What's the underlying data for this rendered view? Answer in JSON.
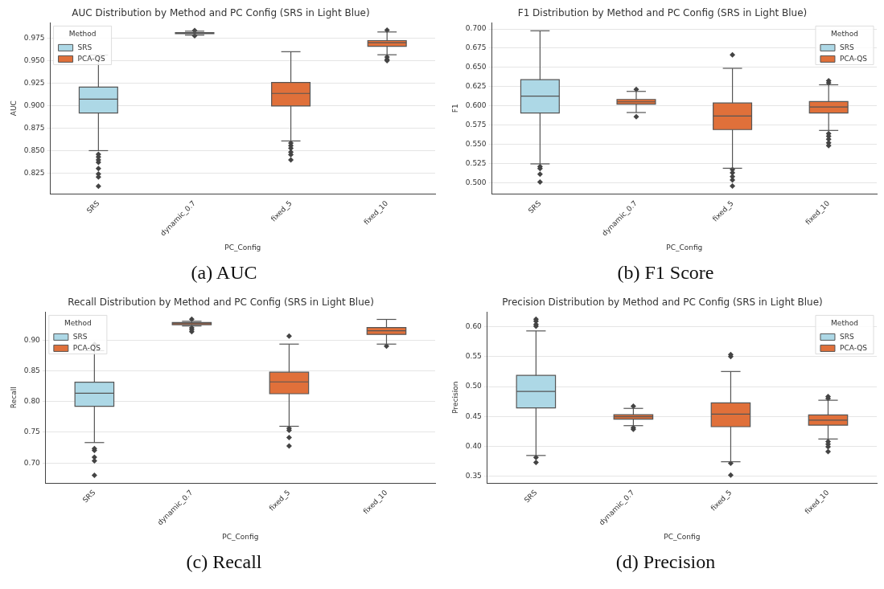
{
  "chart_data": [
    {
      "type": "box",
      "title": "AUC Distribution by Method and PC Config (SRS in Light Blue)",
      "xlabel": "PC_Config",
      "ylabel": "AUC",
      "legend_title": "Method",
      "legend": "top left",
      "grid": "y",
      "marker": "diamond",
      "annotations": [
        "(a) AUC"
      ],
      "categories": [
        "SRS",
        "dynamic_0.7",
        "fixed_5",
        "fixed_10"
      ],
      "ylim": [
        0.802,
        0.9925
      ],
      "yticks": [
        {
          "value": 0.825,
          "label": "0.825"
        },
        {
          "value": 0.85,
          "label": "0.850"
        },
        {
          "value": 0.875,
          "label": "0.875"
        },
        {
          "value": 0.9,
          "label": "0.900"
        },
        {
          "value": 0.925,
          "label": "0.925"
        },
        {
          "value": 0.95,
          "label": "0.950"
        },
        {
          "value": 0.975,
          "label": "0.975"
        }
      ],
      "series": [
        {
          "name": "SRS",
          "color": "#add8e6",
          "boxes": [
            {
              "low": 0.85,
              "q1": 0.892,
              "median": 0.9074,
              "q3": 0.9208,
              "high": 0.9566,
              "outliers": [
                0.846,
                0.843,
                0.8396,
                0.837,
                0.83,
                0.824,
                0.8206,
                0.8104
              ]
            },
            null,
            null,
            null
          ]
        },
        {
          "name": "PCA-QS",
          "color": "#e0703a",
          "boxes": [
            null,
            {
              "low": 0.9788,
              "q1": 0.9805,
              "median": 0.981,
              "q3": 0.9815,
              "high": 0.9832,
              "outliers": [
                0.984,
                0.978
              ]
            },
            {
              "low": 0.8608,
              "q1": 0.8998,
              "median": 0.9138,
              "q3": 0.926,
              "high": 0.9603,
              "outliers": [
                0.8585,
                0.8556,
                0.8527,
                0.8483,
                0.8454,
                0.8396
              ]
            },
            {
              "low": 0.9569,
              "q1": 0.9663,
              "median": 0.9703,
              "q3": 0.9727,
              "high": 0.9823,
              "outliers": [
                0.9843,
                0.9543,
                0.9517,
                0.9502
              ]
            }
          ]
        }
      ]
    },
    {
      "type": "box",
      "title": "F1 Distribution by Method and PC Config (SRS in Light Blue)",
      "xlabel": "PC_Config",
      "ylabel": "F1",
      "legend_title": "Method",
      "legend": "top right",
      "grid": "y",
      "marker": "diamond",
      "annotations": [
        "(b) F1 Score"
      ],
      "categories": [
        "SRS",
        "dynamic_0.7",
        "fixed_5",
        "fixed_10"
      ],
      "ylim": [
        0.4857,
        0.708
      ],
      "yticks": [
        {
          "value": 0.5,
          "label": "0.500"
        },
        {
          "value": 0.525,
          "label": "0.525"
        },
        {
          "value": 0.55,
          "label": "0.550"
        },
        {
          "value": 0.575,
          "label": "0.575"
        },
        {
          "value": 0.6,
          "label": "0.600"
        },
        {
          "value": 0.625,
          "label": "0.625"
        },
        {
          "value": 0.65,
          "label": "0.650"
        },
        {
          "value": 0.675,
          "label": "0.675"
        },
        {
          "value": 0.7,
          "label": "0.700"
        }
      ],
      "series": [
        {
          "name": "SRS",
          "color": "#add8e6",
          "boxes": [
            {
              "low": 0.5245,
              "q1": 0.5906,
              "median": 0.6127,
              "q3": 0.634,
              "high": 0.6976,
              "outliers": [
                0.521,
                0.5183,
                0.5112,
                0.501
              ]
            },
            null,
            null,
            null
          ]
        },
        {
          "name": "PCA-QS",
          "color": "#e0703a",
          "boxes": [
            null,
            {
              "low": 0.5913,
              "q1": 0.6022,
              "median": 0.6052,
              "q3": 0.6083,
              "high": 0.6188,
              "outliers": [
                0.6215,
                0.5859
              ]
            },
            {
              "low": 0.5188,
              "q1": 0.5691,
              "median": 0.5867,
              "q3": 0.6037,
              "high": 0.6488,
              "outliers": [
                0.6664,
                0.5171,
                0.513,
                0.508,
                0.5034,
                0.4956
              ]
            },
            {
              "low": 0.568,
              "q1": 0.5906,
              "median": 0.5985,
              "q3": 0.6056,
              "high": 0.6274,
              "outliers": [
                0.6325,
                0.6298,
                0.5639,
                0.5605,
                0.5565,
                0.552,
                0.5483
              ]
            }
          ]
        }
      ]
    },
    {
      "type": "box",
      "title": "Recall Distribution by Method and PC Config (SRS in Light Blue)",
      "xlabel": "PC_Config",
      "ylabel": "Recall",
      "legend_title": "Method",
      "legend": "top left",
      "grid": "y",
      "marker": "diamond",
      "annotations": [
        "(c) Recall"
      ],
      "categories": [
        "SRS",
        "dynamic_0.7",
        "fixed_5",
        "fixed_10"
      ],
      "ylim": [
        0.6675,
        0.9457
      ],
      "yticks": [
        {
          "value": 0.7,
          "label": "0.70"
        },
        {
          "value": 0.75,
          "label": "0.75"
        },
        {
          "value": 0.8,
          "label": "0.80"
        },
        {
          "value": 0.85,
          "label": "0.85"
        },
        {
          "value": 0.9,
          "label": "0.90"
        }
      ],
      "series": [
        {
          "name": "SRS",
          "color": "#add8e6",
          "boxes": [
            {
              "low": 0.7333,
              "q1": 0.7923,
              "median": 0.8137,
              "q3": 0.8316,
              "high": 0.8829,
              "outliers": [
                0.8932,
                0.7235,
                0.7205,
                0.7094,
                0.7034,
                0.6799
              ]
            },
            null,
            null,
            null
          ]
        },
        {
          "name": "PCA-QS",
          "color": "#e0703a",
          "boxes": [
            null,
            {
              "low": 0.9231,
              "q1": 0.9252,
              "median": 0.9269,
              "q3": 0.9286,
              "high": 0.9308,
              "outliers": [
                0.9342,
                0.9201,
                0.9171,
                0.9137
              ]
            },
            {
              "low": 0.7598,
              "q1": 0.8128,
              "median": 0.8321,
              "q3": 0.8479,
              "high": 0.8936,
              "outliers": [
                0.9068,
                0.7564,
                0.7534,
                0.7415,
                0.7278
              ]
            },
            {
              "low": 0.8936,
              "q1": 0.9094,
              "median": 0.9154,
              "q3": 0.9205,
              "high": 0.9338,
              "outliers": [
                0.8902
              ]
            }
          ]
        }
      ]
    },
    {
      "type": "box",
      "title": "Precision Distribution by Method and PC Config (SRS in Light Blue)",
      "xlabel": "PC_Config",
      "ylabel": "Precision",
      "legend_title": "Method",
      "legend": "top right",
      "grid": "y",
      "marker": "diamond",
      "annotations": [
        "(d) Precision"
      ],
      "categories": [
        "SRS",
        "dynamic_0.7",
        "fixed_5",
        "fixed_10"
      ],
      "ylim": [
        0.3386,
        0.6245
      ],
      "yticks": [
        {
          "value": 0.35,
          "label": "0.35"
        },
        {
          "value": 0.4,
          "label": "0.40"
        },
        {
          "value": 0.45,
          "label": "0.45"
        },
        {
          "value": 0.5,
          "label": "0.50"
        },
        {
          "value": 0.55,
          "label": "0.55"
        },
        {
          "value": 0.6,
          "label": "0.60"
        }
      ],
      "series": [
        {
          "name": "SRS",
          "color": "#add8e6",
          "boxes": [
            {
              "low": 0.3846,
              "q1": 0.4643,
              "median": 0.4919,
              "q3": 0.5186,
              "high": 0.593,
              "outliers": [
                0.6127,
                0.6092,
                0.6039,
                0.6009,
                0.3815,
                0.3728
              ]
            },
            null,
            null,
            null
          ]
        },
        {
          "name": "PCA-QS",
          "color": "#e0703a",
          "boxes": [
            null,
            {
              "low": 0.4345,
              "q1": 0.4455,
              "median": 0.4494,
              "q3": 0.4529,
              "high": 0.4634,
              "outliers": [
                0.4669,
                0.431,
                0.4284
              ]
            },
            {
              "low": 0.3741,
              "q1": 0.4328,
              "median": 0.4538,
              "q3": 0.4726,
              "high": 0.5251,
              "outliers": [
                0.5536,
                0.5501,
                0.3715,
                0.3518
              ]
            },
            {
              "low": 0.4122,
              "q1": 0.4354,
              "median": 0.4437,
              "q3": 0.4525,
              "high": 0.477,
              "outliers": [
                0.4831,
                0.48,
                0.4078,
                0.4034,
                0.3991,
                0.3912
              ]
            }
          ]
        }
      ]
    }
  ]
}
